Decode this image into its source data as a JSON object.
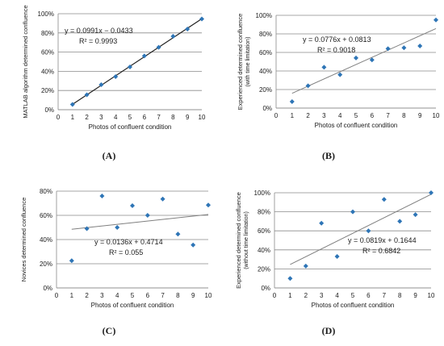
{
  "colors": {
    "background": "#ffffff",
    "point": "#2E75B6",
    "trend_A": "#1f1f1f",
    "trend_other": "#7f7f7f",
    "grid": "#8a8a8a",
    "text": "#1a1a1a"
  },
  "chart_data": [
    {
      "panel": "(A)",
      "type": "scatter",
      "xlabel": "Photos of confluent condition",
      "ylabel": "MATLAB algorithm determined confluence",
      "ylabel2": "",
      "xlim": [
        0,
        10
      ],
      "ylim": [
        0,
        100
      ],
      "xticks": [
        "0",
        "1",
        "2",
        "3",
        "4",
        "5",
        "6",
        "7",
        "8",
        "9",
        "10"
      ],
      "yticks": [
        "0%",
        "20%",
        "40%",
        "60%",
        "80%",
        "100%"
      ],
      "grid": true,
      "x": [
        1,
        2,
        3,
        4,
        5,
        6,
        7,
        8,
        9,
        10
      ],
      "y": [
        5.5,
        15.5,
        26,
        34.5,
        44.5,
        56,
        65,
        76.5,
        84,
        94.5
      ],
      "trendline": {
        "slope": 9.91,
        "intercept": -4.33
      },
      "equation": "y = 0.0991x − 0.0433",
      "r2": "R² = 0.9993"
    },
    {
      "panel": "(B)",
      "type": "scatter",
      "xlabel": "Photos of confluent condition",
      "ylabel": "Experienced determined confluence",
      "ylabel2": "(with time limitation)",
      "xlim": [
        0,
        10
      ],
      "ylim": [
        0,
        100
      ],
      "xticks": [
        "0",
        "1",
        "2",
        "3",
        "4",
        "5",
        "6",
        "7",
        "8",
        "9",
        "10"
      ],
      "yticks": [
        "0%",
        "20%",
        "40%",
        "60%",
        "80%",
        "100%"
      ],
      "grid": true,
      "x": [
        1,
        2,
        3,
        4,
        5,
        6,
        7,
        8,
        9,
        10
      ],
      "y": [
        7,
        24,
        44,
        36,
        54,
        52,
        64,
        65,
        67,
        95
      ],
      "trendline": {
        "slope": 7.76,
        "intercept": 8.13
      },
      "equation": "y = 0.0776x + 0.0813",
      "r2": "R² = 0.9018"
    },
    {
      "panel": "(C)",
      "type": "scatter",
      "xlabel": "Photos of confluent condition",
      "ylabel": "Novices determined confluence",
      "ylabel2": "",
      "xlim": [
        0,
        10
      ],
      "ylim": [
        0,
        80
      ],
      "xticks": [
        "0",
        "1",
        "2",
        "3",
        "4",
        "5",
        "6",
        "7",
        "8",
        "9",
        "10"
      ],
      "yticks": [
        "0%",
        "20%",
        "40%",
        "60%",
        "80%"
      ],
      "grid": true,
      "x": [
        1,
        2,
        3,
        4,
        5,
        6,
        7,
        8,
        9,
        10
      ],
      "y": [
        22.5,
        49,
        76,
        50,
        68,
        60,
        73.5,
        44.5,
        35.5,
        68.5
      ],
      "trendline": {
        "slope": 1.36,
        "intercept": 47.14
      },
      "equation": "y = 0.0136x + 0.4714",
      "r2": "R² = 0.055"
    },
    {
      "panel": "(D)",
      "type": "scatter",
      "xlabel": "Photos of confluent condition",
      "ylabel": "Experienced determined confluence",
      "ylabel2": "(without time limitation)",
      "xlim": [
        0,
        10
      ],
      "ylim": [
        0,
        100
      ],
      "xticks": [
        "0",
        "1",
        "2",
        "3",
        "4",
        "5",
        "6",
        "7",
        "8",
        "9",
        "10"
      ],
      "yticks": [
        "0%",
        "20%",
        "40%",
        "60%",
        "80%",
        "100%"
      ],
      "grid": true,
      "x": [
        1,
        2,
        3,
        4,
        5,
        6,
        7,
        8,
        9,
        10
      ],
      "y": [
        10,
        23,
        68,
        33,
        80,
        60,
        93,
        70,
        77,
        100
      ],
      "trendline": {
        "slope": 8.19,
        "intercept": 16.44
      },
      "equation": "y = 0.0819x + 0.1644",
      "r2": "R² = 0.6842"
    }
  ]
}
